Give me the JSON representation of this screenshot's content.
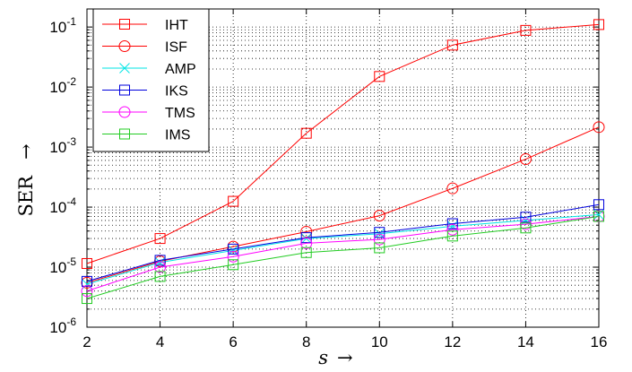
{
  "chart_data": {
    "type": "line",
    "title": "",
    "xlabel": "s",
    "xlabel_arrow": "→",
    "ylabel": "SER",
    "ylabel_arrow": "→",
    "xlim": [
      2,
      16
    ],
    "ylim": [
      1e-06,
      0.2
    ],
    "yscale": "log",
    "grid": true,
    "legend_position": "top-left",
    "x_ticks": [
      2,
      4,
      6,
      8,
      10,
      12,
      14,
      16
    ],
    "y_ticks": [
      {
        "value": 1e-06,
        "mantissa": "10",
        "exponent": "-6"
      },
      {
        "value": 1e-05,
        "mantissa": "10",
        "exponent": "-5"
      },
      {
        "value": 0.0001,
        "mantissa": "10",
        "exponent": "-4"
      },
      {
        "value": 0.001,
        "mantissa": "10",
        "exponent": "-3"
      },
      {
        "value": 0.01,
        "mantissa": "10",
        "exponent": "-2"
      },
      {
        "value": 0.1,
        "mantissa": "10",
        "exponent": "-1"
      }
    ],
    "x": [
      2,
      4,
      6,
      8,
      10,
      12,
      14,
      16
    ],
    "series": [
      {
        "name": "IHT",
        "color": "#ff0000",
        "marker": "square",
        "values": [
          1.15e-05,
          3e-05,
          0.000125,
          0.0017,
          0.015,
          0.05,
          0.088,
          0.11
        ]
      },
      {
        "name": "ISF",
        "color": "#ff0000",
        "marker": "circle",
        "values": [
          5.5e-06,
          1.25e-05,
          2.2e-05,
          3.9e-05,
          7.2e-05,
          0.000205,
          0.00063,
          0.00215
        ]
      },
      {
        "name": "AMP",
        "color": "#00e5e5",
        "marker": "x",
        "values": [
          5.2e-06,
          1.2e-05,
          1.9e-05,
          3e-05,
          3.6e-05,
          4.8e-05,
          6e-05,
          7.5e-05
        ]
      },
      {
        "name": "IKS",
        "color": "#0000dd",
        "marker": "square",
        "values": [
          5.8e-06,
          1.3e-05,
          2e-05,
          3.1e-05,
          3.8e-05,
          5.3e-05,
          6.8e-05,
          0.00011
        ]
      },
      {
        "name": "TMS",
        "color": "#ff00ff",
        "marker": "circle",
        "values": [
          4e-06,
          1e-05,
          1.5e-05,
          2.5e-05,
          2.9e-05,
          4.2e-05,
          5.2e-05,
          7e-05
        ]
      },
      {
        "name": "IMS",
        "color": "#22cc22",
        "marker": "square",
        "values": [
          3e-06,
          7e-06,
          1.1e-05,
          1.75e-05,
          2.1e-05,
          3.3e-05,
          4.5e-05,
          7e-05
        ]
      }
    ]
  }
}
